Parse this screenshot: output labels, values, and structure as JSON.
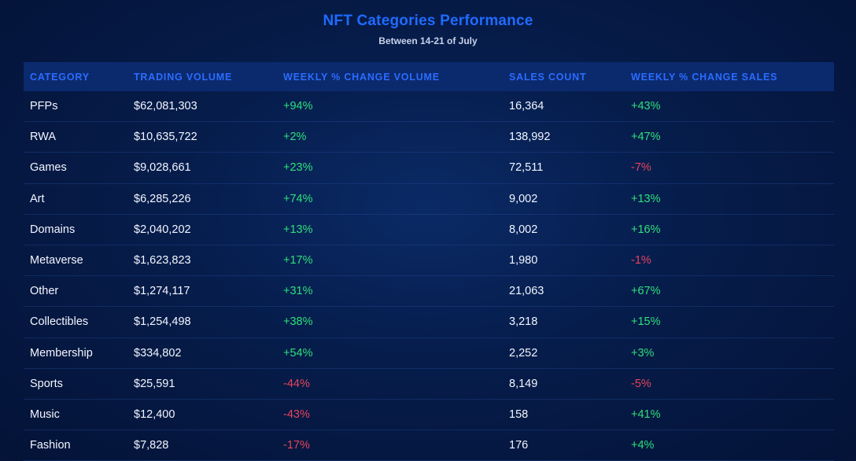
{
  "chart_data": {
    "type": "table",
    "title": "NFT Categories Performance",
    "subtitle": "Between 14-21 of July",
    "columns": [
      "CATEGORY",
      "TRADING VOLUME",
      "WEEKLY % CHANGE VOLUME",
      "SALES COUNT",
      "WEEKLY % CHANGE SALES"
    ],
    "rows": [
      {
        "category": "PFPs",
        "trading_volume": "$62,081,303",
        "weekly_change_volume": "+94%",
        "sales_count": "16,364",
        "weekly_change_sales": "+43%"
      },
      {
        "category": "RWA",
        "trading_volume": "$10,635,722",
        "weekly_change_volume": "+2%",
        "sales_count": "138,992",
        "weekly_change_sales": "+47%"
      },
      {
        "category": "Games",
        "trading_volume": "$9,028,661",
        "weekly_change_volume": "+23%",
        "sales_count": "72,511",
        "weekly_change_sales": "-7%"
      },
      {
        "category": "Art",
        "trading_volume": "$6,285,226",
        "weekly_change_volume": "+74%",
        "sales_count": "9,002",
        "weekly_change_sales": "+13%"
      },
      {
        "category": "Domains",
        "trading_volume": "$2,040,202",
        "weekly_change_volume": "+13%",
        "sales_count": "8,002",
        "weekly_change_sales": "+16%"
      },
      {
        "category": "Metaverse",
        "trading_volume": "$1,623,823",
        "weekly_change_volume": "+17%",
        "sales_count": "1,980",
        "weekly_change_sales": "-1%"
      },
      {
        "category": "Other",
        "trading_volume": "$1,274,117",
        "weekly_change_volume": "+31%",
        "sales_count": "21,063",
        "weekly_change_sales": "+67%"
      },
      {
        "category": "Collectibles",
        "trading_volume": "$1,254,498",
        "weekly_change_volume": "+38%",
        "sales_count": "3,218",
        "weekly_change_sales": "+15%"
      },
      {
        "category": "Membership",
        "trading_volume": "$334,802",
        "weekly_change_volume": "+54%",
        "sales_count": "2,252",
        "weekly_change_sales": "+3%"
      },
      {
        "category": "Sports",
        "trading_volume": "$25,591",
        "weekly_change_volume": "-44%",
        "sales_count": "8,149",
        "weekly_change_sales": "-5%"
      },
      {
        "category": "Music",
        "trading_volume": "$12,400",
        "weekly_change_volume": "-43%",
        "sales_count": "158",
        "weekly_change_sales": "+41%"
      },
      {
        "category": "Fashion",
        "trading_volume": "$7,828",
        "weekly_change_volume": "-17%",
        "sales_count": "176",
        "weekly_change_sales": "+4%"
      }
    ]
  },
  "colors": {
    "title": "#1f6bff",
    "header_text": "#2b6cff",
    "header_background": "#0b2a6e",
    "positive": "#2ee07a",
    "negative": "#e8435a",
    "background": "#061c4a"
  }
}
